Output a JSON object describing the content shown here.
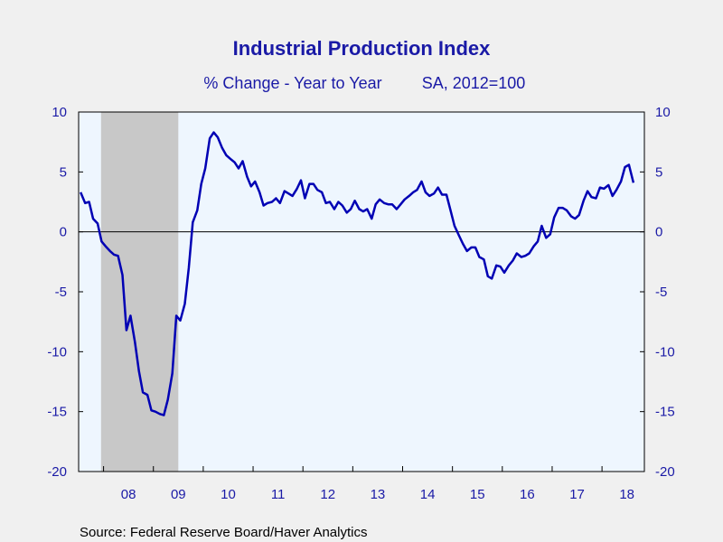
{
  "chart_data": {
    "type": "line",
    "title": "Industrial Production Index",
    "subtitle": "% Change - Year to Year",
    "subtitle_note": "SA, 2012=100",
    "source": "Source:  Federal Reserve Board/Haver Analytics",
    "ylim": [
      -20,
      10
    ],
    "yticks": [
      "10",
      "5",
      "0",
      "-5",
      "-10",
      "-15",
      "-20"
    ],
    "ytick_values": [
      10,
      5,
      0,
      -5,
      -10,
      -15,
      -20
    ],
    "x_start": 2007.5,
    "x_end": 2018.85,
    "year_labels": [
      "08",
      "09",
      "10",
      "11",
      "12",
      "13",
      "14",
      "15",
      "16",
      "17",
      "18"
    ],
    "recession": [
      2007.95,
      2009.5
    ],
    "zero_line": true,
    "colors": {
      "line": "#0000b4",
      "text": "#1a1aa6",
      "plot_bg": "#eef6fe",
      "recession": "#c8c8c8",
      "page_bg": "#f0f0f0"
    },
    "series": [
      {
        "points": [
          [
            2007.54,
            3.3
          ],
          [
            2007.63,
            2.4
          ],
          [
            2007.71,
            2.5
          ],
          [
            2007.79,
            1.1
          ],
          [
            2007.88,
            0.7
          ],
          [
            2007.96,
            -0.8
          ],
          [
            2008.04,
            -1.2
          ],
          [
            2008.13,
            -1.6
          ],
          [
            2008.21,
            -1.9
          ],
          [
            2008.29,
            -2.0
          ],
          [
            2008.38,
            -3.6
          ],
          [
            2008.46,
            -8.2
          ],
          [
            2008.54,
            -7.0
          ],
          [
            2008.63,
            -9.2
          ],
          [
            2008.71,
            -11.6
          ],
          [
            2008.79,
            -13.4
          ],
          [
            2008.88,
            -13.6
          ],
          [
            2008.96,
            -14.9
          ],
          [
            2009.04,
            -15.0
          ],
          [
            2009.13,
            -15.2
          ],
          [
            2009.21,
            -15.3
          ],
          [
            2009.29,
            -14.0
          ],
          [
            2009.38,
            -11.8
          ],
          [
            2009.46,
            -7.0
          ],
          [
            2009.54,
            -7.4
          ],
          [
            2009.63,
            -6.0
          ],
          [
            2009.71,
            -3.0
          ],
          [
            2009.79,
            0.8
          ],
          [
            2009.88,
            1.8
          ],
          [
            2009.96,
            4.0
          ],
          [
            2010.04,
            5.3
          ],
          [
            2010.13,
            7.8
          ],
          [
            2010.21,
            8.3
          ],
          [
            2010.29,
            7.9
          ],
          [
            2010.38,
            7.0
          ],
          [
            2010.46,
            6.4
          ],
          [
            2010.54,
            6.1
          ],
          [
            2010.63,
            5.8
          ],
          [
            2010.71,
            5.3
          ],
          [
            2010.79,
            5.9
          ],
          [
            2010.88,
            4.6
          ],
          [
            2010.96,
            3.8
          ],
          [
            2011.04,
            4.2
          ],
          [
            2011.13,
            3.3
          ],
          [
            2011.21,
            2.2
          ],
          [
            2011.29,
            2.4
          ],
          [
            2011.38,
            2.5
          ],
          [
            2011.46,
            2.8
          ],
          [
            2011.54,
            2.4
          ],
          [
            2011.63,
            3.4
          ],
          [
            2011.71,
            3.2
          ],
          [
            2011.79,
            3.0
          ],
          [
            2011.88,
            3.6
          ],
          [
            2011.96,
            4.3
          ],
          [
            2012.04,
            2.8
          ],
          [
            2012.13,
            4.0
          ],
          [
            2012.21,
            4.0
          ],
          [
            2012.29,
            3.5
          ],
          [
            2012.38,
            3.3
          ],
          [
            2012.46,
            2.4
          ],
          [
            2012.54,
            2.5
          ],
          [
            2012.63,
            1.9
          ],
          [
            2012.71,
            2.5
          ],
          [
            2012.79,
            2.2
          ],
          [
            2012.88,
            1.6
          ],
          [
            2012.96,
            1.9
          ],
          [
            2013.04,
            2.6
          ],
          [
            2013.13,
            1.9
          ],
          [
            2013.21,
            1.7
          ],
          [
            2013.29,
            1.9
          ],
          [
            2013.38,
            1.1
          ],
          [
            2013.46,
            2.3
          ],
          [
            2013.54,
            2.7
          ],
          [
            2013.63,
            2.4
          ],
          [
            2013.71,
            2.3
          ],
          [
            2013.79,
            2.3
          ],
          [
            2013.88,
            1.9
          ],
          [
            2013.96,
            2.3
          ],
          [
            2014.04,
            2.7
          ],
          [
            2014.13,
            3.0
          ],
          [
            2014.21,
            3.3
          ],
          [
            2014.29,
            3.5
          ],
          [
            2014.38,
            4.2
          ],
          [
            2014.46,
            3.3
          ],
          [
            2014.54,
            3.0
          ],
          [
            2014.63,
            3.2
          ],
          [
            2014.71,
            3.7
          ],
          [
            2014.79,
            3.1
          ],
          [
            2014.88,
            3.1
          ],
          [
            2014.96,
            1.8
          ],
          [
            2015.04,
            0.5
          ],
          [
            2015.13,
            -0.3
          ],
          [
            2015.21,
            -1.0
          ],
          [
            2015.29,
            -1.6
          ],
          [
            2015.38,
            -1.3
          ],
          [
            2015.46,
            -1.3
          ],
          [
            2015.54,
            -2.1
          ],
          [
            2015.63,
            -2.3
          ],
          [
            2015.71,
            -3.7
          ],
          [
            2015.79,
            -3.9
          ],
          [
            2015.88,
            -2.8
          ],
          [
            2015.96,
            -2.9
          ],
          [
            2016.04,
            -3.4
          ],
          [
            2016.13,
            -2.8
          ],
          [
            2016.21,
            -2.4
          ],
          [
            2016.29,
            -1.8
          ],
          [
            2016.38,
            -2.1
          ],
          [
            2016.46,
            -2.0
          ],
          [
            2016.54,
            -1.8
          ],
          [
            2016.63,
            -1.2
          ],
          [
            2016.71,
            -0.8
          ],
          [
            2016.79,
            0.5
          ],
          [
            2016.88,
            -0.5
          ],
          [
            2016.96,
            -0.2
          ],
          [
            2017.04,
            1.2
          ],
          [
            2017.13,
            2.0
          ],
          [
            2017.21,
            2.0
          ],
          [
            2017.29,
            1.8
          ],
          [
            2017.38,
            1.3
          ],
          [
            2017.46,
            1.1
          ],
          [
            2017.54,
            1.4
          ],
          [
            2017.63,
            2.6
          ],
          [
            2017.71,
            3.4
          ],
          [
            2017.79,
            2.9
          ],
          [
            2017.88,
            2.8
          ],
          [
            2017.96,
            3.7
          ],
          [
            2018.04,
            3.6
          ],
          [
            2018.13,
            3.9
          ],
          [
            2018.21,
            3.0
          ],
          [
            2018.29,
            3.5
          ],
          [
            2018.38,
            4.2
          ],
          [
            2018.46,
            5.4
          ],
          [
            2018.54,
            5.6
          ],
          [
            2018.63,
            4.1
          ]
        ]
      }
    ]
  }
}
